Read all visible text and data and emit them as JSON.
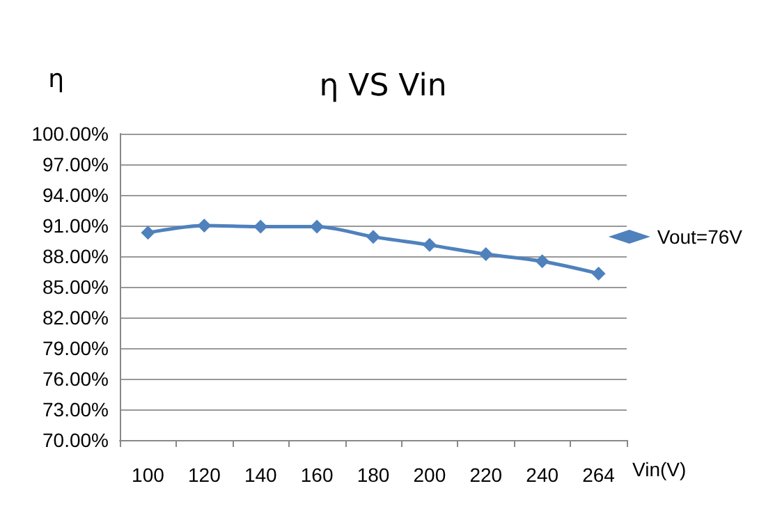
{
  "chart_data": {
    "type": "line",
    "title": "η VS Vin",
    "ylabel": "η",
    "xlabel": "Vin(V)",
    "categories": [
      "100",
      "120",
      "140",
      "160",
      "180",
      "200",
      "220",
      "240",
      "264"
    ],
    "series": [
      {
        "name": "Vout=76V",
        "color": "#4f81bd",
        "values": [
          90.3,
          91.0,
          90.9,
          90.9,
          89.9,
          89.1,
          88.2,
          87.5,
          86.3
        ]
      }
    ],
    "ylim": [
      70,
      100
    ],
    "yticks": [
      {
        "value": 70,
        "label": "70.00%"
      },
      {
        "value": 73,
        "label": "73.00%"
      },
      {
        "value": 76,
        "label": "76.00%"
      },
      {
        "value": 79,
        "label": "79.00%"
      },
      {
        "value": 82,
        "label": "82.00%"
      },
      {
        "value": 85,
        "label": "85.00%"
      },
      {
        "value": 88,
        "label": "88.00%"
      },
      {
        "value": 91,
        "label": "91.00%"
      },
      {
        "value": 94,
        "label": "94.00%"
      },
      {
        "value": 97,
        "label": "97.00%"
      },
      {
        "value": 100,
        "label": "100.00%"
      }
    ],
    "grid": "y",
    "legend": "right",
    "marker": "diamond",
    "line_style": "solid"
  }
}
